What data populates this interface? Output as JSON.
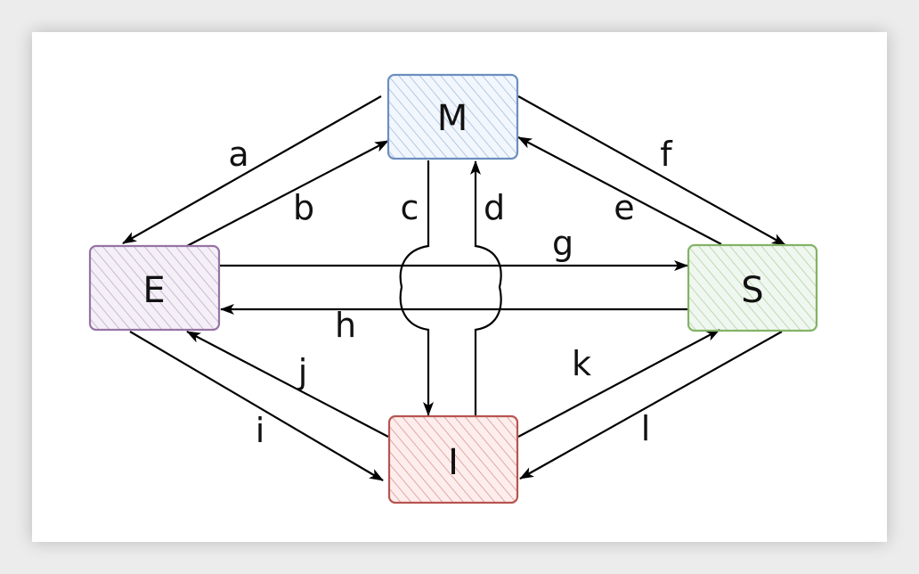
{
  "nodes": {
    "M": {
      "label": "M",
      "fill": "#dae8fc",
      "stroke": "#6c8ebf"
    },
    "E": {
      "label": "E",
      "fill": "#e1d5e7",
      "stroke": "#9673a6"
    },
    "S": {
      "label": "S",
      "fill": "#d5e8d4",
      "stroke": "#82b366"
    },
    "I": {
      "label": "I",
      "fill": "#f8cecc",
      "stroke": "#b85450"
    }
  },
  "edges": [
    {
      "label": "a",
      "from": "M",
      "to": "E"
    },
    {
      "label": "b",
      "from": "E",
      "to": "M"
    },
    {
      "label": "c",
      "from": "M",
      "to": "I"
    },
    {
      "label": "d",
      "from": "I",
      "to": "M"
    },
    {
      "label": "e",
      "from": "S",
      "to": "M"
    },
    {
      "label": "f",
      "from": "M",
      "to": "S"
    },
    {
      "label": "g",
      "from": "E",
      "to": "S"
    },
    {
      "label": "h",
      "from": "S",
      "to": "E"
    },
    {
      "label": "i",
      "from": "E",
      "to": "I"
    },
    {
      "label": "j",
      "from": "I",
      "to": "E"
    },
    {
      "label": "k",
      "from": "I",
      "to": "S"
    },
    {
      "label": "l",
      "from": "S",
      "to": "I"
    }
  ]
}
